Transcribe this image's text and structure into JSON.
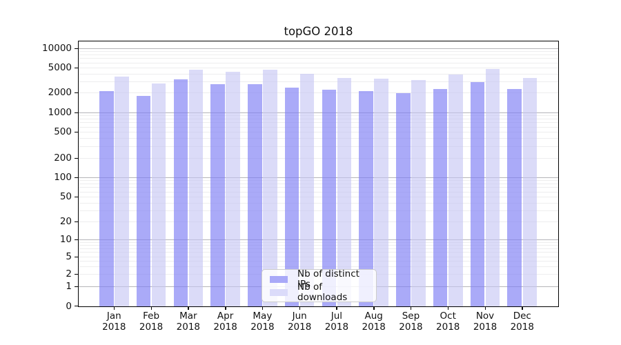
{
  "chart_data": {
    "type": "bar",
    "title": "topGO 2018",
    "xlabel": "",
    "ylabel": "",
    "yscale": "log",
    "ylim": [
      0,
      10000
    ],
    "grid": true,
    "legend_position": "bottom-center-inside",
    "y_ticks": [
      10000,
      5000,
      2000,
      1000,
      500,
      200,
      100,
      50,
      20,
      10,
      5,
      2,
      1,
      0
    ],
    "categories": [
      "Jan 2018",
      "Feb 2018",
      "Mar 2018",
      "Apr 2018",
      "May 2018",
      "Jun 2018",
      "Jul 2018",
      "Aug 2018",
      "Sep 2018",
      "Oct 2018",
      "Nov 2018",
      "Dec 2018"
    ],
    "series": [
      {
        "name": "Nb of distinct IPs",
        "color": "#a9a9f8",
        "values": [
          2080,
          1790,
          3260,
          2700,
          2700,
          2390,
          2220,
          2110,
          1960,
          2250,
          2960,
          2250
        ]
      },
      {
        "name": "Nb of downloads",
        "color": "#dbdbfa",
        "values": [
          3600,
          2770,
          4640,
          4280,
          4640,
          3940,
          3450,
          3340,
          3130,
          3900,
          4720,
          3400
        ]
      }
    ]
  }
}
